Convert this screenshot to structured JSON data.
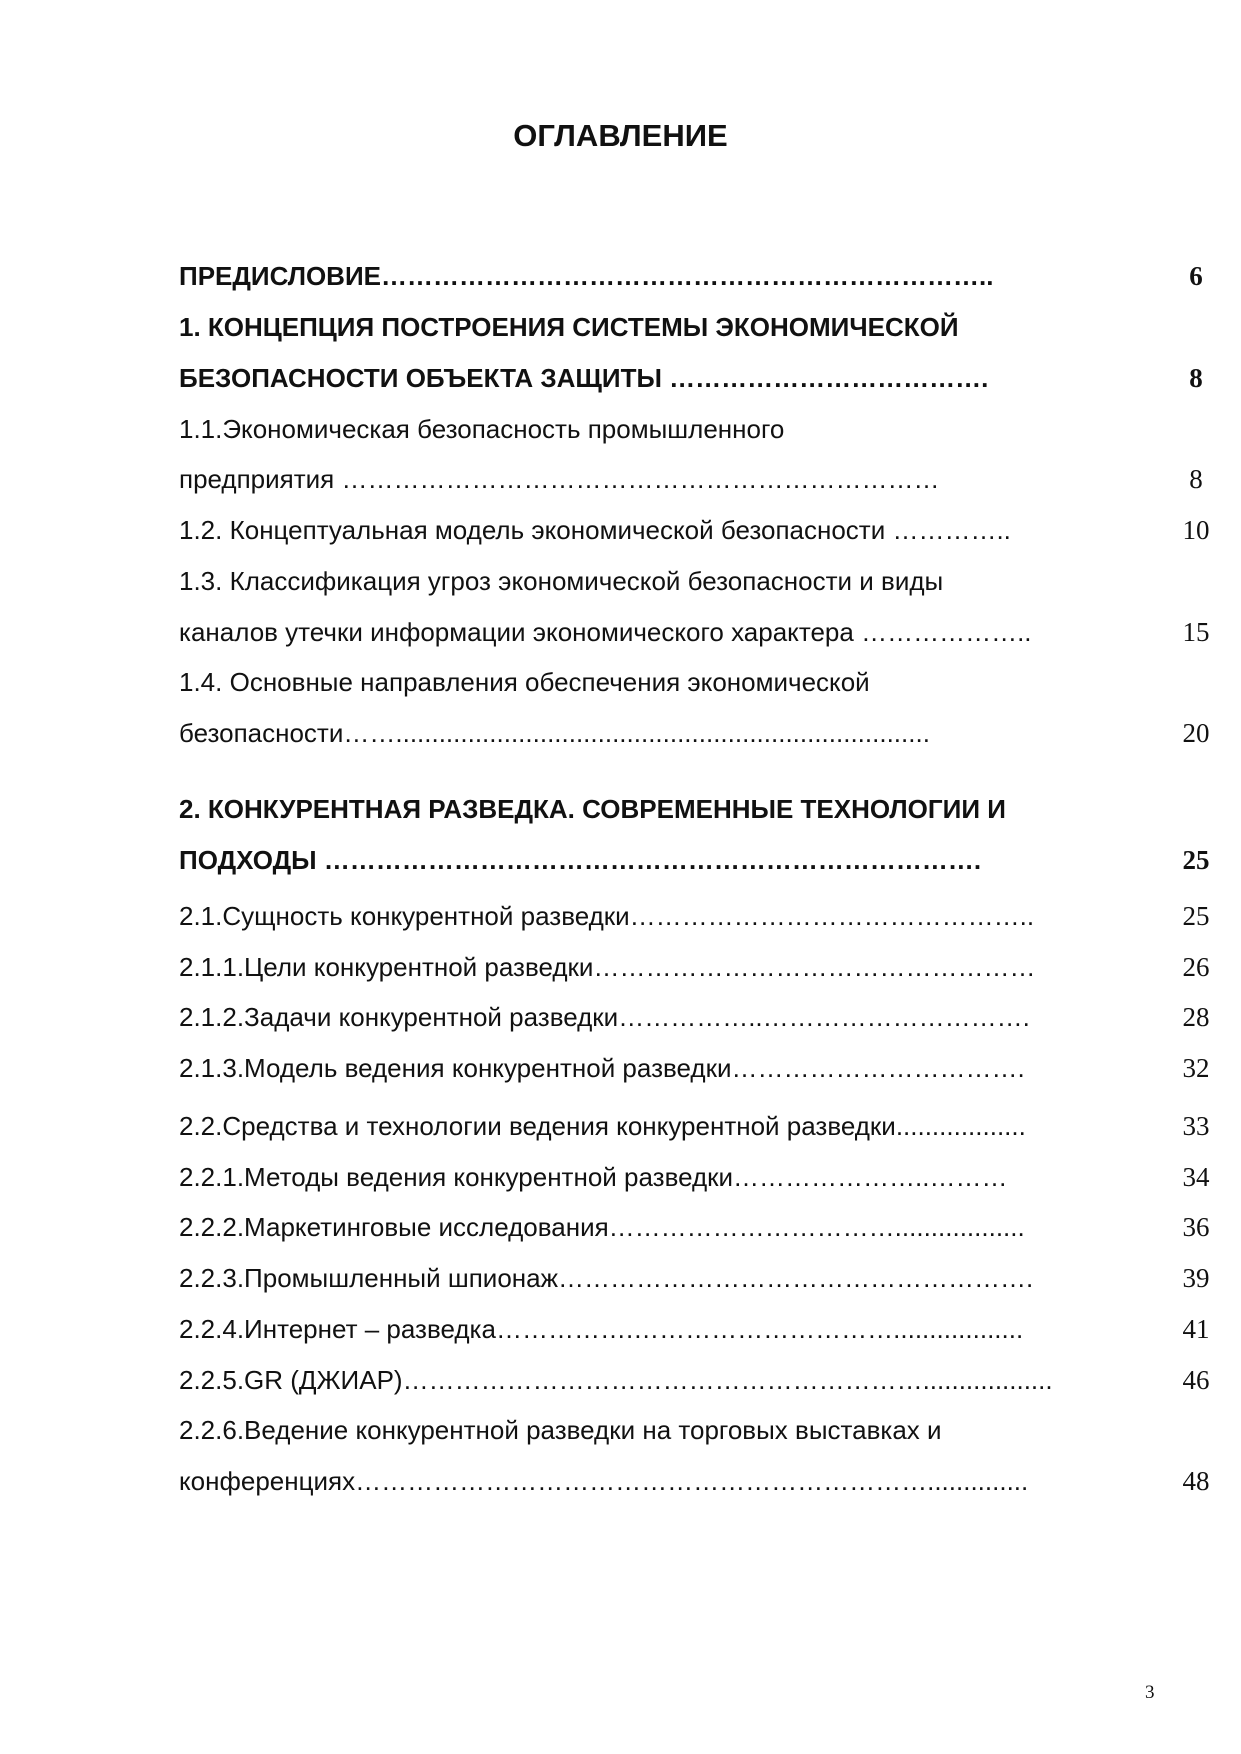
{
  "title": "ОГЛАВЛЕНИЕ",
  "entries": [
    {
      "text": "ПРЕДИСЛОВИЕ……………………………………………………………..",
      "page": "6",
      "bold": true
    },
    {
      "text": "1. КОНЦЕПЦИЯ ПОСТРОЕНИЯ СИСТЕМЫ ЭКОНОМИЧЕСКОЙ",
      "page": "",
      "bold": true
    },
    {
      "text": "БЕЗОПАСНОСТИ  ОБЪЕКТА ЗАЩИТЫ ……………………………….",
      "page": "8",
      "bold": true
    },
    {
      "text": "1.1.Экономическая безопасность промышленного",
      "page": "",
      "bold": false
    },
    {
      "text": " предприятия ……………………………………………………………",
      "page": "8",
      "bold": false
    },
    {
      "text": "1.2. Концептуальная модель экономической безопасности …………..",
      "page": "10",
      "bold": false
    },
    {
      "text": "1.3. Классификация угроз экономической безопасности и виды",
      "page": "",
      "bold": false
    },
    {
      "text": "каналов утечки информации экономического характера ………………..",
      "page": "15",
      "bold": false
    },
    {
      "text": "1.4. Основные направления обеспечения экономической",
      "page": "",
      "bold": false
    },
    {
      "text": "безопасности……..........................................................................",
      "page": "20",
      "bold": false
    },
    {
      "text": "2. КОНКУРЕНТНАЯ РАЗВЕДКА. СОВРЕМЕННЫЕ ТЕХНОЛОГИИ И",
      "page": "",
      "bold": true
    },
    {
      "text": "ПОДХОДЫ ………………………………………………………………….",
      "page": "25",
      "bold": true
    },
    {
      "text": "2.1.Сущность конкурентной разведки………………………………………..",
      "page": "25",
      "bold": false
    },
    {
      "text": "2.1.1.Цели конкурентной разведки……………………………………………",
      "page": "26",
      "bold": false
    },
    {
      "text": "2.1.2.Задачи конкурентной разведки……………..………………………….",
      "page": "28",
      "bold": false
    },
    {
      "text": "2.1.3.Модель ведения конкурентной разведки…………………………….",
      "page": "32",
      "bold": false
    },
    {
      "text": "2.2.Средства и технологии ведения конкурентной разведки..................",
      "page": "33",
      "bold": false
    },
    {
      "text": "2.2.1.Методы ведения конкурентной разведки…………………..………",
      "page": "34",
      "bold": false
    },
    {
      "text": "2.2.2.Маркетинговые исследования……………………………..................",
      "page": "36",
      "bold": false
    },
    {
      "text": "2.2.3.Промышленный шпионаж……………………………………………….",
      "page": "39",
      "bold": false
    },
    {
      "text": "2.2.4.Интернет – разведка…………….…………………………..................",
      "page": "41",
      "bold": false
    },
    {
      "text": "2.2.5.GR (ДЖИАР)……………………………………………………..................",
      "page": "46",
      "bold": false
    },
    {
      "text": "2.2.6.Ведение конкурентной разведки на торговых выставках и",
      "page": "",
      "bold": false
    },
    {
      "text": "конференциях…………………………………………………………..............",
      "page": "48",
      "bold": false
    }
  ],
  "page_number": "3"
}
